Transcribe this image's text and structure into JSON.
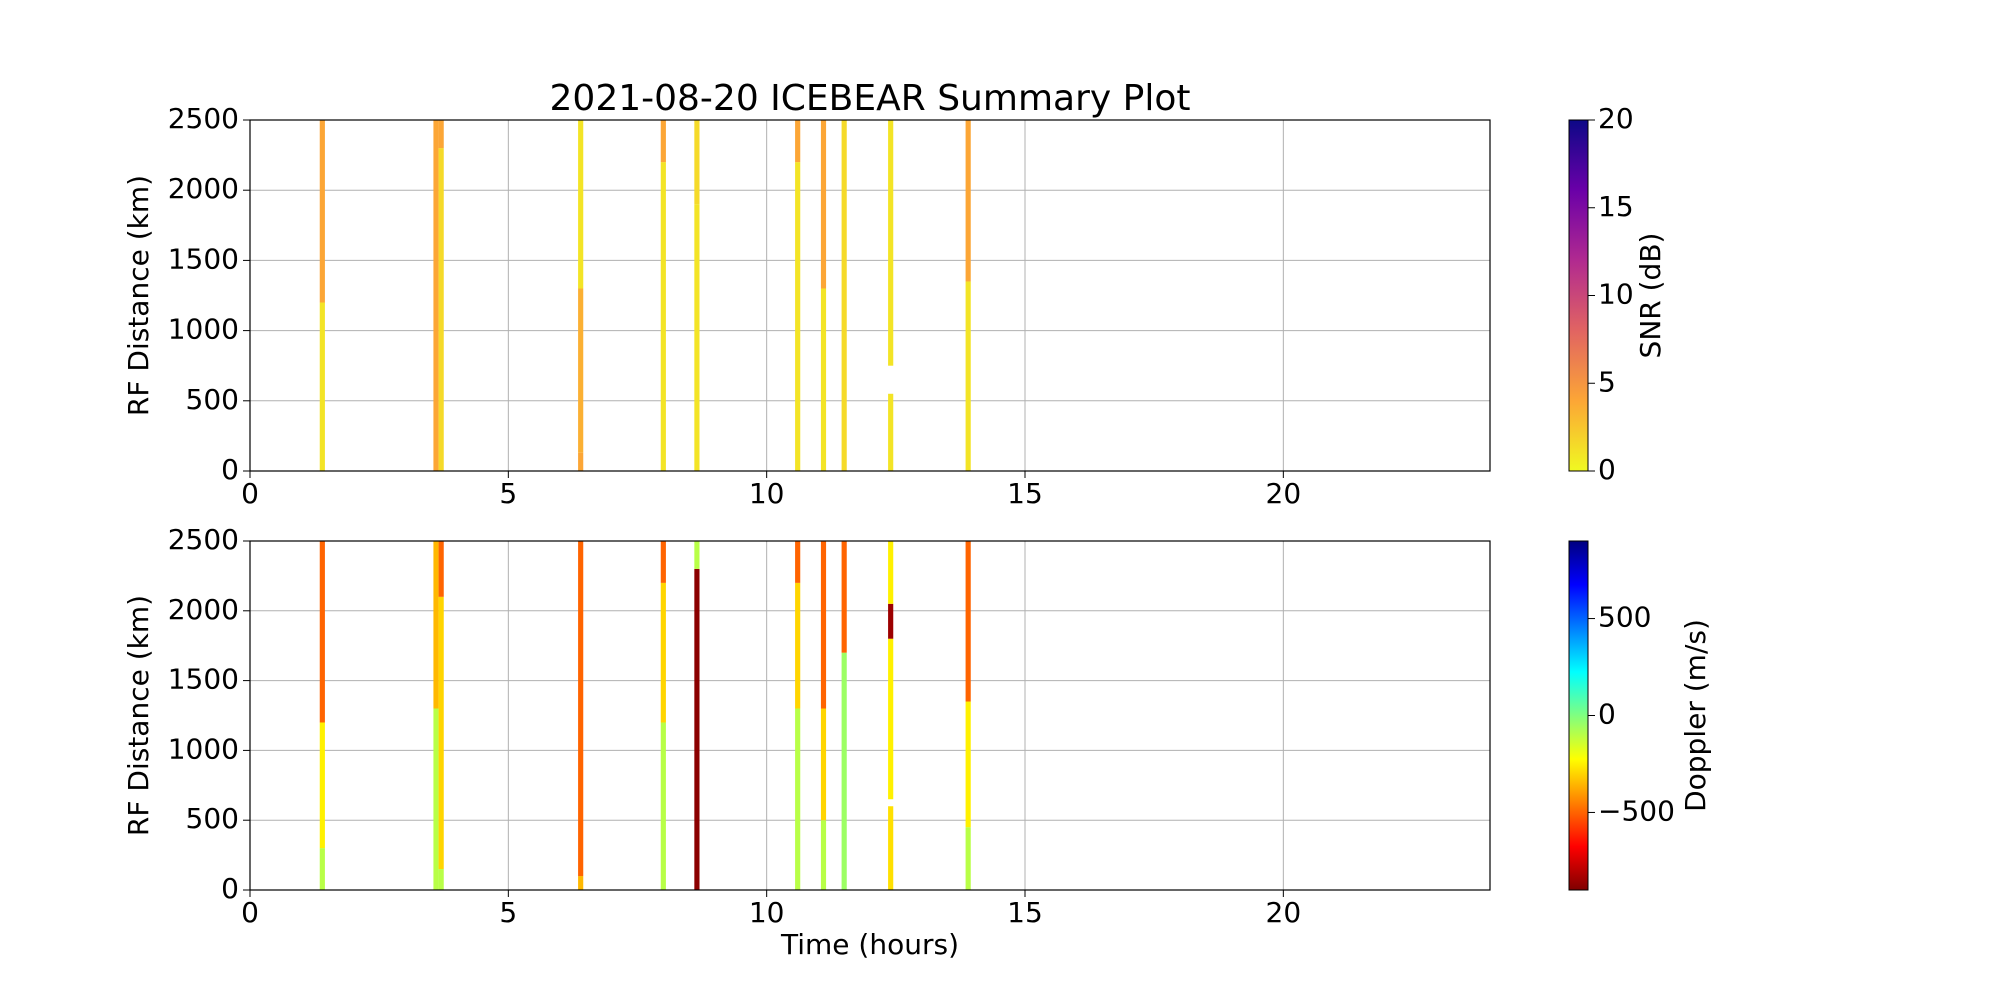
{
  "chart_data": [
    {
      "type": "strip",
      "title": "2021-08-20 ICEBEAR Summary Plot",
      "ylabel": "RF Distance (km)",
      "xlim": [
        0,
        24
      ],
      "xticks": [
        0,
        5,
        10,
        15,
        20
      ],
      "ylim": [
        0,
        2500
      ],
      "yticks": [
        0,
        500,
        1000,
        1500,
        2000,
        2500
      ],
      "grid": true,
      "colorbar": {
        "label": "SNR (dB)",
        "lim": [
          0,
          20
        ],
        "ticks": [
          0,
          5,
          10,
          15,
          20
        ],
        "colormap": [
          "#f0f921",
          "#fca636",
          "#e16462",
          "#b12a90",
          "#6a00a8",
          "#0d0887"
        ]
      },
      "strips": [
        {
          "x": 1.4,
          "segments": [
            {
              "y0": 0,
              "y1": 1200,
              "value": 1
            },
            {
              "y0": 1200,
              "y1": 2500,
              "value": 4
            }
          ]
        },
        {
          "x": 3.6,
          "segments": [
            {
              "y0": 0,
              "y1": 2500,
              "value": 4
            }
          ]
        },
        {
          "x": 3.7,
          "segments": [
            {
              "y0": 0,
              "y1": 2300,
              "value": 1.5
            },
            {
              "y0": 2300,
              "y1": 2500,
              "value": 4
            }
          ]
        },
        {
          "x": 6.4,
          "segments": [
            {
              "y0": 0,
              "y1": 130,
              "value": 4
            },
            {
              "y0": 130,
              "y1": 1300,
              "value": 3.5
            },
            {
              "y0": 1300,
              "y1": 2500,
              "value": 1
            }
          ]
        },
        {
          "x": 8.0,
          "segments": [
            {
              "y0": 0,
              "y1": 2200,
              "value": 1
            },
            {
              "y0": 2200,
              "y1": 2500,
              "value": 4
            }
          ]
        },
        {
          "x": 8.65,
          "segments": [
            {
              "y0": 0,
              "y1": 1900,
              "value": 1
            },
            {
              "y0": 1900,
              "y1": 2500,
              "value": 1.5
            }
          ]
        },
        {
          "x": 10.6,
          "segments": [
            {
              "y0": 0,
              "y1": 2200,
              "value": 1
            },
            {
              "y0": 2200,
              "y1": 2500,
              "value": 4
            }
          ]
        },
        {
          "x": 11.1,
          "segments": [
            {
              "y0": 0,
              "y1": 1300,
              "value": 1
            },
            {
              "y0": 1300,
              "y1": 2500,
              "value": 4
            }
          ]
        },
        {
          "x": 11.5,
          "segments": [
            {
              "y0": 0,
              "y1": 2500,
              "value": 1.5
            }
          ]
        },
        {
          "x": 12.4,
          "segments": [
            {
              "y0": 0,
              "y1": 550,
              "value": 1
            },
            {
              "y0": 750,
              "y1": 2500,
              "value": 1
            }
          ]
        },
        {
          "x": 13.9,
          "segments": [
            {
              "y0": 0,
              "y1": 1350,
              "value": 1
            },
            {
              "y0": 1350,
              "y1": 2500,
              "value": 4
            }
          ]
        }
      ]
    },
    {
      "type": "strip",
      "ylabel": "RF Distance (km)",
      "xlabel": "Time (hours)",
      "xlim": [
        0,
        24
      ],
      "xticks": [
        0,
        5,
        10,
        15,
        20
      ],
      "ylim": [
        0,
        2500
      ],
      "yticks": [
        0,
        500,
        1000,
        1500,
        2000,
        2500
      ],
      "grid": true,
      "colorbar": {
        "label": "Doppler (m/s)",
        "lim": [
          -900,
          900
        ],
        "ticks": [
          {
            "value": -500,
            "label": "−500"
          },
          0,
          500
        ],
        "colormap": [
          "#800000",
          "#ff0000",
          "#ff8000",
          "#ffff00",
          "#80ff80",
          "#00ffff",
          "#0080ff",
          "#0000ff",
          "#000080"
        ]
      },
      "strips": [
        {
          "x": 1.4,
          "segments": [
            {
              "y0": 0,
              "y1": 300,
              "value": -100
            },
            {
              "y0": 300,
              "y1": 1200,
              "value": -250
            },
            {
              "y0": 1200,
              "y1": 2500,
              "value": -500
            }
          ]
        },
        {
          "x": 3.6,
          "segments": [
            {
              "y0": 0,
              "y1": 1300,
              "value": -100
            },
            {
              "y0": 1300,
              "y1": 2500,
              "value": -350
            }
          ]
        },
        {
          "x": 3.7,
          "segments": [
            {
              "y0": 0,
              "y1": 150,
              "value": -100
            },
            {
              "y0": 150,
              "y1": 2100,
              "value": -300
            },
            {
              "y0": 2100,
              "y1": 2500,
              "value": -500
            }
          ]
        },
        {
          "x": 6.4,
          "segments": [
            {
              "y0": 0,
              "y1": 100,
              "value": -350
            },
            {
              "y0": 100,
              "y1": 2500,
              "value": -500
            }
          ]
        },
        {
          "x": 8.0,
          "segments": [
            {
              "y0": 0,
              "y1": 1200,
              "value": -100
            },
            {
              "y0": 1200,
              "y1": 2200,
              "value": -300
            },
            {
              "y0": 2200,
              "y1": 2500,
              "value": -500
            }
          ]
        },
        {
          "x": 8.65,
          "segments": [
            {
              "y0": 0,
              "y1": 2300,
              "value": -880
            },
            {
              "y0": 2300,
              "y1": 2500,
              "value": -100
            }
          ]
        },
        {
          "x": 10.6,
          "segments": [
            {
              "y0": 0,
              "y1": 1300,
              "value": -100
            },
            {
              "y0": 1300,
              "y1": 2200,
              "value": -300
            },
            {
              "y0": 2200,
              "y1": 2500,
              "value": -500
            }
          ]
        },
        {
          "x": 11.1,
          "segments": [
            {
              "y0": 0,
              "y1": 500,
              "value": -100
            },
            {
              "y0": 500,
              "y1": 1300,
              "value": -300
            },
            {
              "y0": 1300,
              "y1": 2500,
              "value": -500
            }
          ]
        },
        {
          "x": 11.5,
          "segments": [
            {
              "y0": 0,
              "y1": 1700,
              "value": -50
            },
            {
              "y0": 1700,
              "y1": 2500,
              "value": -500
            }
          ]
        },
        {
          "x": 12.4,
          "segments": [
            {
              "y0": 0,
              "y1": 600,
              "value": -280
            },
            {
              "y0": 650,
              "y1": 1800,
              "value": -250
            },
            {
              "y0": 1800,
              "y1": 2050,
              "value": -850
            },
            {
              "y0": 2050,
              "y1": 2500,
              "value": -250
            }
          ]
        },
        {
          "x": 13.9,
          "segments": [
            {
              "y0": 0,
              "y1": 450,
              "value": -100
            },
            {
              "y0": 450,
              "y1": 1350,
              "value": -250
            },
            {
              "y0": 1350,
              "y1": 2500,
              "value": -500
            }
          ]
        }
      ]
    }
  ]
}
